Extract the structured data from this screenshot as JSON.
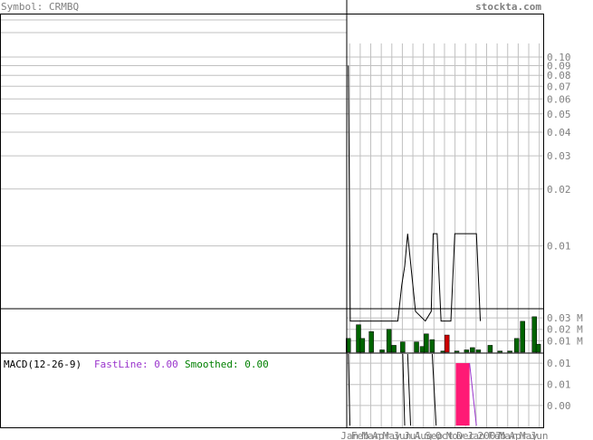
{
  "header": {
    "symbol_label": "Symbol: CRMBQ",
    "site": "stockta.com"
  },
  "colors": {
    "header_text": "#808080",
    "grid": "#c0c0c0",
    "axis": "#000000",
    "volume_up": "#006400",
    "volume_down": "#cc0000",
    "macd_fast": "#9933cc",
    "macd_smoothed": "#008000",
    "histogram": "#ff1a75"
  },
  "chart_data": [
    {
      "type": "line",
      "panel": "price",
      "scale": "log",
      "y_ticks": [
        "0.10",
        "0.09",
        "0.08",
        "0.07",
        "0.06",
        "0.05",
        "0.04",
        "0.03",
        "0.02",
        "0.01"
      ],
      "y_tick_values": [
        0.1,
        0.09,
        0.08,
        0.07,
        0.06,
        0.05,
        0.04,
        0.03,
        0.02,
        0.01
      ],
      "ylim": [
        0.0047,
        0.118
      ],
      "x_ticks": [
        "Jan",
        "Feb",
        "Mar",
        "Apr",
        "May",
        "Jun",
        "Jul",
        "Aug",
        "Sep",
        "Oct",
        "Nov",
        "Dec",
        "Jan",
        "2007",
        "Feb",
        "Mar",
        "Apr",
        "May",
        "Jun"
      ],
      "xlim": [
        0,
        100
      ],
      "series": [
        {
          "points": [
            [
              0.8,
              0.09
            ],
            [
              1.8,
              0.004
            ],
            [
              26,
              0.004
            ],
            [
              28,
              0.0062
            ],
            [
              29.5,
              0.0078
            ],
            [
              31,
              0.0116
            ],
            [
              35,
              0.0045
            ],
            [
              40,
              0.004
            ],
            [
              43,
              0.0045
            ],
            [
              44,
              0.0116
            ],
            [
              46,
              0.0116
            ],
            [
              48,
              0.004
            ],
            [
              53,
              0.004
            ],
            [
              55,
              0.0116
            ],
            [
              66,
              0.0116
            ],
            [
              68,
              0.004
            ]
          ]
        }
      ]
    },
    {
      "type": "bar",
      "panel": "volume",
      "y_ticks": [
        "0.03 M",
        "0.02 M",
        "0.01 M"
      ],
      "y_tick_values": [
        0.03,
        0.02,
        0.01
      ],
      "ylim": [
        0,
        0.038
      ],
      "bars": [
        {
          "x": 0.8,
          "v": 0.012,
          "dir": "up"
        },
        {
          "x": 6.0,
          "v": 0.024,
          "dir": "up"
        },
        {
          "x": 8.0,
          "v": 0.012,
          "dir": "up"
        },
        {
          "x": 12.5,
          "v": 0.018,
          "dir": "up"
        },
        {
          "x": 18.0,
          "v": 0.002,
          "dir": "up"
        },
        {
          "x": 21.5,
          "v": 0.02,
          "dir": "up"
        },
        {
          "x": 24.0,
          "v": 0.006,
          "dir": "up"
        },
        {
          "x": 28.5,
          "v": 0.009,
          "dir": "up"
        },
        {
          "x": 35.5,
          "v": 0.009,
          "dir": "up"
        },
        {
          "x": 38.5,
          "v": 0.005,
          "dir": "up"
        },
        {
          "x": 40.5,
          "v": 0.016,
          "dir": "up"
        },
        {
          "x": 43.5,
          "v": 0.011,
          "dir": "up"
        },
        {
          "x": 49.0,
          "v": 0.001,
          "dir": "up"
        },
        {
          "x": 51.0,
          "v": 0.015,
          "dir": "down"
        },
        {
          "x": 56.0,
          "v": 0.001,
          "dir": "up"
        },
        {
          "x": 61.0,
          "v": 0.002,
          "dir": "up"
        },
        {
          "x": 64.0,
          "v": 0.004,
          "dir": "up"
        },
        {
          "x": 67.0,
          "v": 0.002,
          "dir": "up"
        },
        {
          "x": 73.0,
          "v": 0.006,
          "dir": "up"
        },
        {
          "x": 78.0,
          "v": 0.001,
          "dir": "up"
        },
        {
          "x": 83.0,
          "v": 0.001,
          "dir": "up"
        },
        {
          "x": 86.5,
          "v": 0.012,
          "dir": "up"
        },
        {
          "x": 89.5,
          "v": 0.027,
          "dir": "up"
        },
        {
          "x": 95.5,
          "v": 0.031,
          "dir": "up"
        },
        {
          "x": 97.5,
          "v": 0.007,
          "dir": "up"
        }
      ]
    },
    {
      "type": "area",
      "panel": "macd",
      "title": "MACD(12-26-9)",
      "legend": [
        {
          "label": "FastLine: 0.00",
          "color": "#9933cc"
        },
        {
          "label": "Smoothed: 0.00",
          "color": "#008000"
        }
      ],
      "y_ticks": [
        "0.01",
        "0.01",
        "0.00"
      ],
      "y_tick_values": [
        0.0085,
        0.0038,
        -0.0008
      ],
      "ylim": [
        -0.0052,
        0.0105
      ],
      "zero_line": -0.0052,
      "histogram": [
        {
          "x0": 55.5,
          "x1": 62.5,
          "v": 0.0085
        }
      ],
      "smoothed_line": [
        [
          62.5,
          0.0085
        ],
        [
          66.0,
          -0.0052
        ]
      ],
      "traces": [
        [
          [
            0.8,
            0.011
          ],
          [
            1.6,
            -0.0052
          ]
        ],
        [
          [
            28.5,
            0.011
          ],
          [
            29.5,
            -0.0052
          ]
        ],
        [
          [
            31.0,
            0.011
          ],
          [
            32.5,
            -0.0052
          ]
        ],
        [
          [
            43.5,
            0.011
          ],
          [
            45.5,
            -0.0052
          ]
        ]
      ]
    }
  ]
}
